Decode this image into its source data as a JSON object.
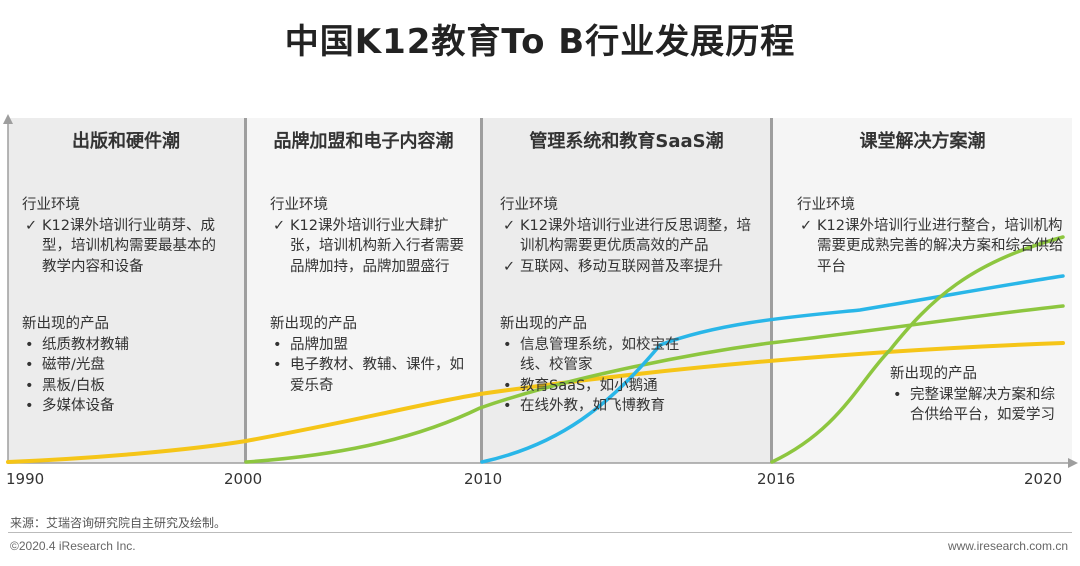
{
  "title": "中国K12教育To B行业发展历程",
  "colors": {
    "panel_dark": "#ececec",
    "panel_light": "#f5f5f5",
    "separator": "#9e9e9e",
    "yellow": "#f5c518",
    "green": "#8dc63f",
    "blue": "#29b6e8"
  },
  "phases": [
    {
      "title": "出版和硬件潮",
      "env_title": "行业环境",
      "env_items": [
        {
          "mark": "✓",
          "text": "K12课外培训行业萌芽、成型，培训机构需要最基本的教学内容和设备"
        }
      ],
      "prod_title": "新出现的产品",
      "prod_items": [
        {
          "mark": "•",
          "text": "纸质教材教辅"
        },
        {
          "mark": "•",
          "text": "磁带/光盘"
        },
        {
          "mark": "•",
          "text": "黑板/白板"
        },
        {
          "mark": "•",
          "text": "多媒体设备"
        }
      ]
    },
    {
      "title": "品牌加盟和电子内容潮",
      "env_title": "行业环境",
      "env_items": [
        {
          "mark": "✓",
          "text": "K12课外培训行业大肆扩张，培训机构新入行者需要品牌加持，品牌加盟盛行"
        }
      ],
      "prod_title": "新出现的产品",
      "prod_items": [
        {
          "mark": "•",
          "text": "品牌加盟"
        },
        {
          "mark": "•",
          "text": "电子教材、教辅、课件，如爱乐奇"
        }
      ]
    },
    {
      "title": "管理系统和教育SaaS潮",
      "env_title": "行业环境",
      "env_items": [
        {
          "mark": "✓",
          "text": "K12课外培训行业进行反思调整，培训机构需要更优质高效的产品"
        },
        {
          "mark": "✓",
          "text": "互联网、移动互联网普及率提升"
        }
      ],
      "prod_title": "新出现的产品",
      "prod_items": [
        {
          "mark": "•",
          "text": "信息管理系统，如校宝在线、校管家"
        },
        {
          "mark": "•",
          "text": "教育SaaS，如小鹅通"
        },
        {
          "mark": "•",
          "text": "在线外教，如飞博教育"
        }
      ]
    },
    {
      "title": "课堂解决方案潮",
      "env_title": "行业环境",
      "env_items": [
        {
          "mark": "✓",
          "text": "K12课外培训行业进行整合，培训机构需要更成熟完善的解决方案和综合供给平台"
        }
      ],
      "prod_title": "新出现的产品",
      "prod_items": [
        {
          "mark": "•",
          "text": "完整课堂解决方案和综合供给平台，如爱学习"
        }
      ]
    }
  ],
  "timeline": [
    "1990",
    "2000",
    "2010",
    "2016",
    "2020"
  ],
  "footer": {
    "source": "来源：艾瑞咨询研究院自主研究及绘制。",
    "copyright": "©2020.4 iResearch Inc.",
    "website": "www.iresearch.com.cn"
  }
}
